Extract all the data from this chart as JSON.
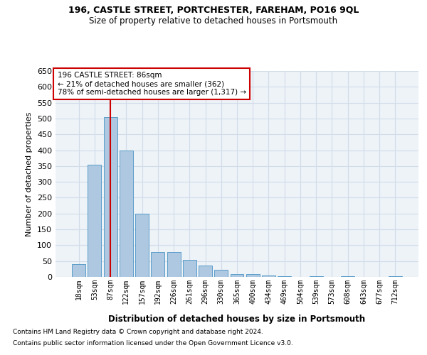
{
  "title1": "196, CASTLE STREET, PORTCHESTER, FAREHAM, PO16 9QL",
  "title2": "Size of property relative to detached houses in Portsmouth",
  "xlabel": "Distribution of detached houses by size in Portsmouth",
  "ylabel": "Number of detached properties",
  "bar_labels": [
    "18sqm",
    "53sqm",
    "87sqm",
    "122sqm",
    "157sqm",
    "192sqm",
    "226sqm",
    "261sqm",
    "296sqm",
    "330sqm",
    "365sqm",
    "400sqm",
    "434sqm",
    "469sqm",
    "504sqm",
    "539sqm",
    "573sqm",
    "608sqm",
    "643sqm",
    "677sqm",
    "712sqm"
  ],
  "bar_values": [
    40,
    355,
    505,
    400,
    200,
    78,
    78,
    53,
    35,
    22,
    10,
    8,
    5,
    2,
    0,
    2,
    0,
    2,
    0,
    0,
    2
  ],
  "bar_color": "#adc8e0",
  "bar_edge_color": "#5a9ec9",
  "vline_x_index": 2,
  "vline_color": "#cc0000",
  "annotation_lines": [
    "196 CASTLE STREET: 86sqm",
    "← 21% of detached houses are smaller (362)",
    "78% of semi-detached houses are larger (1,317) →"
  ],
  "annotation_box_color": "#cc0000",
  "ylim": [
    0,
    650
  ],
  "yticks": [
    0,
    50,
    100,
    150,
    200,
    250,
    300,
    350,
    400,
    450,
    500,
    550,
    600,
    650
  ],
  "grid_color": "#d0dce8",
  "background_color": "#eef3f8",
  "footnote1": "Contains HM Land Registry data © Crown copyright and database right 2024.",
  "footnote2": "Contains public sector information licensed under the Open Government Licence v3.0."
}
